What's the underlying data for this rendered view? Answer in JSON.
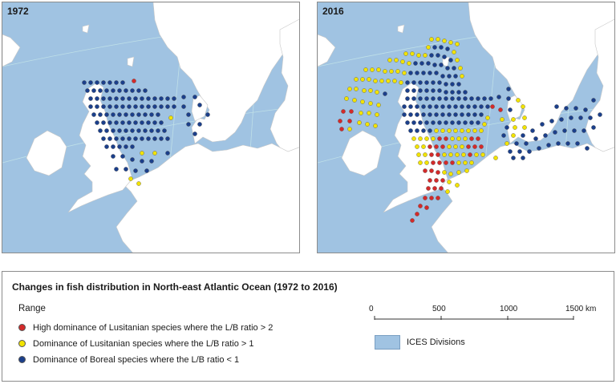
{
  "panels": [
    {
      "label": "1972"
    },
    {
      "label": "2016"
    }
  ],
  "legend": {
    "title": "Changes in fish distribution in North-east Atlantic Ocean (1972 to 2016)",
    "range_heading": "Range",
    "items": [
      {
        "label": "High dominance of Lusitanian species where the L/B ratio > 2",
        "color": "#d42a2a"
      },
      {
        "label": "Dominance of Lusitanian species where the L/B ratio > 1",
        "color": "#f2e300"
      },
      {
        "label": "Dominance of Boreal species where the L/B ratio < 1",
        "color": "#1b3f8b"
      }
    ],
    "scale": {
      "ticks": [
        "0",
        "500",
        "1000"
      ],
      "end_label": "1500 km"
    },
    "ices_label": "ICES  Divisions"
  },
  "colors": {
    "sea": "#a0c3e2",
    "land": "#ffffff",
    "border": "#c8c8c8",
    "graticule": "#bfe0e8"
  }
}
